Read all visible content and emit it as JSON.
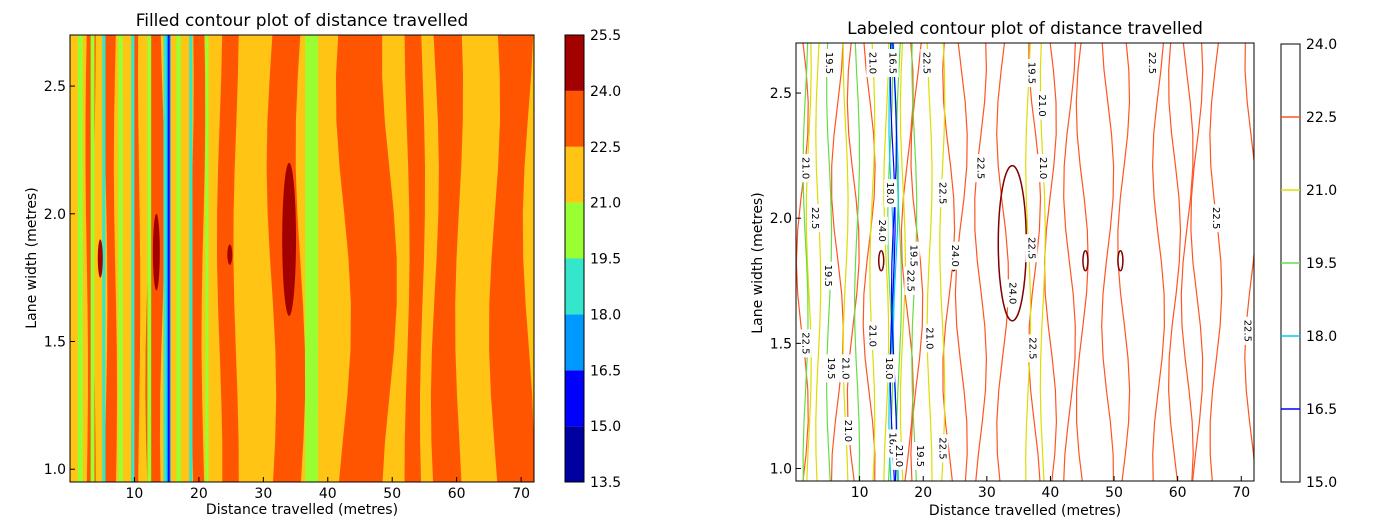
{
  "chart_data": [
    {
      "type": "heatmap",
      "subtype": "filled-contour",
      "title": "Filled contour plot of distance travelled",
      "xlabel": "Distance travelled (metres)",
      "ylabel": "Lane width (metres)",
      "xlim": [
        0,
        72
      ],
      "ylim": [
        0.95,
        2.7
      ],
      "xticks": [
        "10",
        "20",
        "30",
        "40",
        "50",
        "60",
        "70"
      ],
      "yticks": [
        "1.0",
        "1.5",
        "2.0",
        "2.5"
      ],
      "colorbar": {
        "levels": [
          "13.5",
          "15.0",
          "16.5",
          "18.0",
          "19.5",
          "21.0",
          "22.5",
          "24.0",
          "25.5"
        ],
        "colors": [
          "#0000a0",
          "#0000ff",
          "#0099ff",
          "#33e6cc",
          "#99ff33",
          "#ffc414",
          "#ff5500",
          "#a30000"
        ]
      },
      "background_level_color": "#ffc414",
      "bands": [
        {
          "x": [
            0.0,
            1.2
          ],
          "color": "#ffc414"
        },
        {
          "x": [
            1.2,
            2.0
          ],
          "color": "#99ff33"
        },
        {
          "x": [
            3.2,
            3.8
          ],
          "color": "#99ff33"
        },
        {
          "x": [
            5.0,
            5.5
          ],
          "color": "#33e6cc"
        },
        {
          "x": [
            7.5,
            8.2
          ],
          "color": "#99ff33"
        },
        {
          "x": [
            9.5,
            10.0
          ],
          "color": "#33e6cc"
        },
        {
          "x": [
            12.0,
            12.6
          ],
          "color": "#99ff33"
        },
        {
          "x": [
            14.5,
            15.5
          ],
          "color": "#33e6cc"
        },
        {
          "x": [
            15.0,
            15.6
          ],
          "color": "#0099ff"
        },
        {
          "x": [
            16.5,
            17.2
          ],
          "color": "#99ff33"
        },
        {
          "x": [
            18.5,
            19.0
          ],
          "color": "#33e6cc"
        },
        {
          "x": [
            21.0,
            21.5
          ],
          "color": "#99ff33"
        },
        {
          "x": [
            36.5,
            38.5
          ],
          "color": "#99ff33"
        }
      ],
      "regions_24_to_22_5": [
        {
          "xc": 3.2,
          "w": 1.6
        },
        {
          "xc": 6.3,
          "w": 2.0
        },
        {
          "xc": 10.2,
          "w": 1.4
        },
        {
          "xc": 13.2,
          "w": 3.0
        },
        {
          "xc": 19.8,
          "w": 2.4
        },
        {
          "xc": 24.5,
          "w": 3.4
        },
        {
          "xc": 33.5,
          "w": 6.0
        },
        {
          "xc": 46.0,
          "w": 9.5
        },
        {
          "xc": 53.5,
          "w": 3.2
        },
        {
          "xc": 58.5,
          "w": 5.0
        },
        {
          "xc": 68.5,
          "w": 7.0
        }
      ],
      "regions_above_24": [
        {
          "xc": 34.0,
          "y": [
            1.6,
            2.2
          ]
        },
        {
          "xc": 13.4,
          "y": [
            1.7,
            2.0
          ]
        },
        {
          "xc": 4.7,
          "y": [
            1.75,
            1.9
          ]
        },
        {
          "xc": 24.8,
          "y": [
            1.8,
            1.88
          ]
        }
      ]
    },
    {
      "type": "heatmap",
      "subtype": "labeled-contour",
      "title": "Labeled contour plot of distance travelled",
      "xlabel": "Distance travelled (metres)",
      "ylabel": "Lane width (metres)",
      "xlim": [
        0,
        72
      ],
      "ylim": [
        0.95,
        2.7
      ],
      "xticks": [
        "10",
        "20",
        "30",
        "40",
        "50",
        "60",
        "70"
      ],
      "yticks": [
        "1.0",
        "1.5",
        "2.0",
        "2.5"
      ],
      "colorbar": {
        "levels": [
          "15.0",
          "16.5",
          "18.0",
          "19.5",
          "21.0",
          "22.5",
          "24.0"
        ],
        "line_colors": [
          "#0000ff",
          "#00ccee",
          "#66dd44",
          "#dddd00",
          "#ff5522",
          "#800000"
        ]
      },
      "line_levels": [
        {
          "level": "22.5",
          "color": "#ff5522",
          "x": [
            1.0,
            6.5,
            9.0,
            11.5,
            17.5,
            19.0,
            24.0,
            26.0,
            29.0,
            32.5,
            37.5,
            40.0,
            43.0,
            45.0,
            49.0,
            51.5,
            57.0,
            59.5,
            61.5,
            63.0,
            66.0,
            71.5
          ]
        },
        {
          "level": "21.0",
          "color": "#dddd00",
          "x": [
            2.0,
            3.5,
            7.8,
            12.0,
            14.2,
            16.8,
            21.0,
            23.0,
            36.5,
            38.8
          ]
        },
        {
          "level": "19.5",
          "color": "#66dd44",
          "x": [
            1.5,
            5.2,
            9.6,
            14.8,
            16.2,
            18.6
          ]
        },
        {
          "level": "18.0",
          "color": "#00ccee",
          "x": [
            15.0,
            15.7
          ]
        },
        {
          "level": "16.5",
          "color": "#0000ff",
          "x": [
            15.2,
            15.4
          ]
        },
        {
          "level": "24.0",
          "color": "#800000",
          "x": [
            34.0,
            13.4,
            45.5,
            51.0,
            24.8
          ]
        }
      ],
      "inline_labels": [
        {
          "text": "22.5",
          "x": 66.0,
          "y": 2.0
        },
        {
          "text": "22.5",
          "x": 71.0,
          "y": 1.55
        },
        {
          "text": "22.5",
          "x": 56.0,
          "y": 2.62
        },
        {
          "text": "22.5",
          "x": 37.2,
          "y": 1.48
        },
        {
          "text": "22.5",
          "x": 37.0,
          "y": 1.88
        },
        {
          "text": "22.5",
          "x": 29.0,
          "y": 2.2
        },
        {
          "text": "22.5",
          "x": 23.0,
          "y": 2.1
        },
        {
          "text": "22.5",
          "x": 20.5,
          "y": 2.62
        },
        {
          "text": "22.5",
          "x": 23.0,
          "y": 1.08
        },
        {
          "text": "22.5",
          "x": 18.0,
          "y": 1.75
        },
        {
          "text": "22.5",
          "x": 3.0,
          "y": 2.0
        },
        {
          "text": "22.5",
          "x": 1.5,
          "y": 1.5
        },
        {
          "text": "21.0",
          "x": 1.5,
          "y": 2.2
        },
        {
          "text": "21.0",
          "x": 7.8,
          "y": 1.4
        },
        {
          "text": "21.0",
          "x": 8.2,
          "y": 1.15
        },
        {
          "text": "21.0",
          "x": 12.0,
          "y": 1.53
        },
        {
          "text": "21.0",
          "x": 12.0,
          "y": 2.62
        },
        {
          "text": "21.0",
          "x": 21.0,
          "y": 1.52
        },
        {
          "text": "21.0",
          "x": 38.8,
          "y": 2.2
        },
        {
          "text": "21.0",
          "x": 38.7,
          "y": 2.45
        },
        {
          "text": "19.5",
          "x": 5.2,
          "y": 2.62
        },
        {
          "text": "19.5",
          "x": 5.0,
          "y": 1.77
        },
        {
          "text": "19.5",
          "x": 5.5,
          "y": 1.4
        },
        {
          "text": "19.5",
          "x": 18.5,
          "y": 1.85
        },
        {
          "text": "19.5",
          "x": 37.0,
          "y": 2.58
        },
        {
          "text": "18.0",
          "x": 14.8,
          "y": 2.1
        },
        {
          "text": "18.0",
          "x": 14.6,
          "y": 1.4
        },
        {
          "text": "16.5",
          "x": 15.2,
          "y": 2.62
        },
        {
          "text": "16.5",
          "x": 15.2,
          "y": 1.1
        },
        {
          "text": "24.0",
          "x": 13.5,
          "y": 1.95
        },
        {
          "text": "24.0",
          "x": 25.0,
          "y": 1.85
        },
        {
          "text": "24.0",
          "x": 34.0,
          "y": 1.7
        },
        {
          "text": "21.0",
          "x": 16.2,
          "y": 1.05
        },
        {
          "text": "19.5",
          "x": 19.5,
          "y": 1.05
        }
      ]
    }
  ]
}
